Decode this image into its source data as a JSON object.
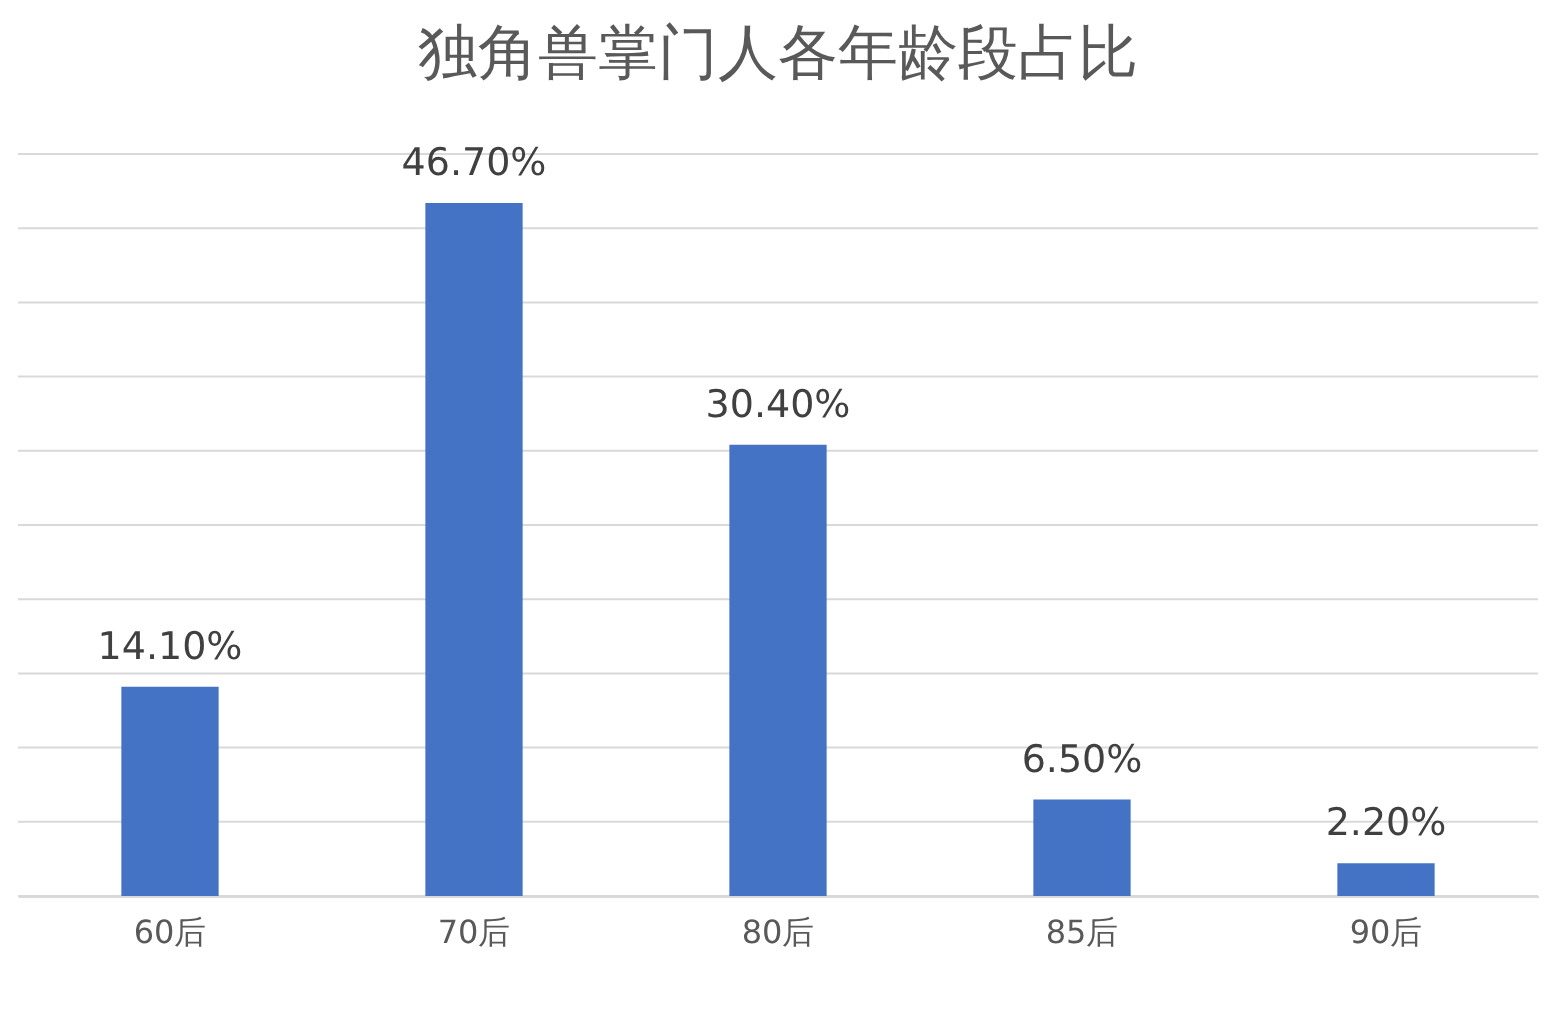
{
  "chart_data": {
    "type": "bar",
    "title": "独角兽掌门人各年龄段占比",
    "categories": [
      "60后",
      "70后",
      "80后",
      "85后",
      "90后"
    ],
    "values": [
      14.1,
      46.7,
      30.4,
      6.5,
      2.2
    ],
    "value_labels": [
      "14.10%",
      "46.70%",
      "30.40%",
      "6.50%",
      "2.20%"
    ],
    "color": "#4472c4",
    "ylim": [
      0,
      50
    ],
    "yticks": [
      {
        "value": 0,
        "label": null
      },
      {
        "value": 5,
        "label": null
      },
      {
        "value": 10,
        "label": null
      },
      {
        "value": 15,
        "label": null
      },
      {
        "value": 20,
        "label": null
      },
      {
        "value": 25,
        "label": null
      },
      {
        "value": 30,
        "label": null
      },
      {
        "value": 35,
        "label": null
      },
      {
        "value": 40,
        "label": null
      },
      {
        "value": 45,
        "label": null
      },
      {
        "value": 50,
        "label": null
      }
    ],
    "grid": "y",
    "tick_labels": "x"
  }
}
